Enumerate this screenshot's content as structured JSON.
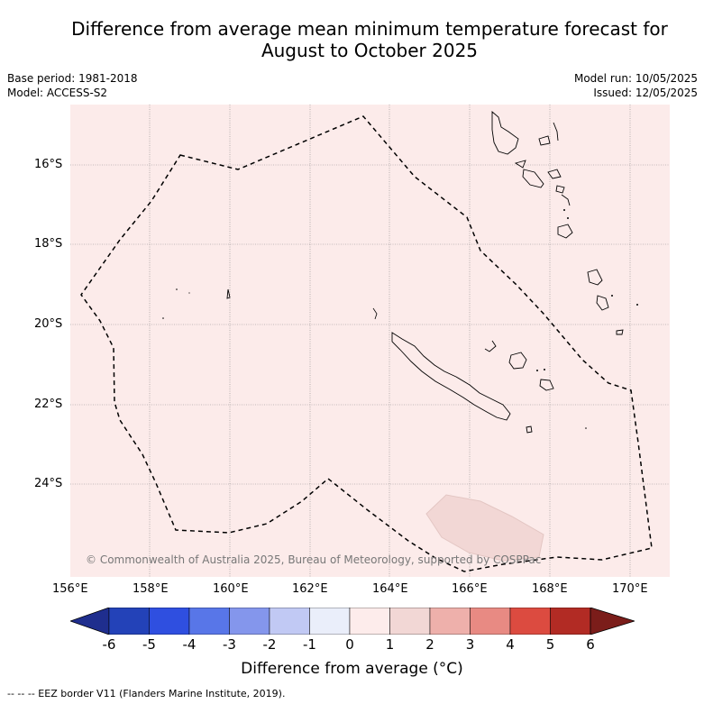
{
  "title_line1": "Difference from average mean minimum temperature forecast for",
  "title_line2": "August to October 2025",
  "meta_left": {
    "base_period": "Base period: 1981-2018",
    "model": "Model: ACCESS-S2"
  },
  "meta_right": {
    "model_run": "Model run: 10/05/2025",
    "issued": "Issued: 12/05/2025"
  },
  "map": {
    "background_color": "#fcebea",
    "lat_ticks": [
      "16°S",
      "18°S",
      "20°S",
      "22°S",
      "24°S"
    ],
    "lon_ticks": [
      "156°E",
      "158°E",
      "160°E",
      "162°E",
      "164°E",
      "166°E",
      "168°E",
      "170°E"
    ],
    "credit": "© Commonwealth of Australia 2025, Bureau of Meteorology, supported by COSPPac",
    "anomaly_patch_color": "#f2d7d5"
  },
  "colorbar": {
    "ticks": [
      "-6",
      "-5",
      "-4",
      "-3",
      "-2",
      "-1",
      "0",
      "1",
      "2",
      "3",
      "4",
      "5",
      "6"
    ],
    "colors": [
      "#1f2e8e",
      "#2342b8",
      "#2f4fe0",
      "#5876e8",
      "#8496ec",
      "#c1c9f4",
      "#eaeefa",
      "#fdeceb",
      "#f2d7d5",
      "#eeb0ab",
      "#e88a83",
      "#dc4b40",
      "#b22b24",
      "#7b1d1a"
    ],
    "label": "Difference from average (°C)"
  },
  "footer": "--  --  -- EEZ border V11 (Flanders Marine Institute, 2019)."
}
